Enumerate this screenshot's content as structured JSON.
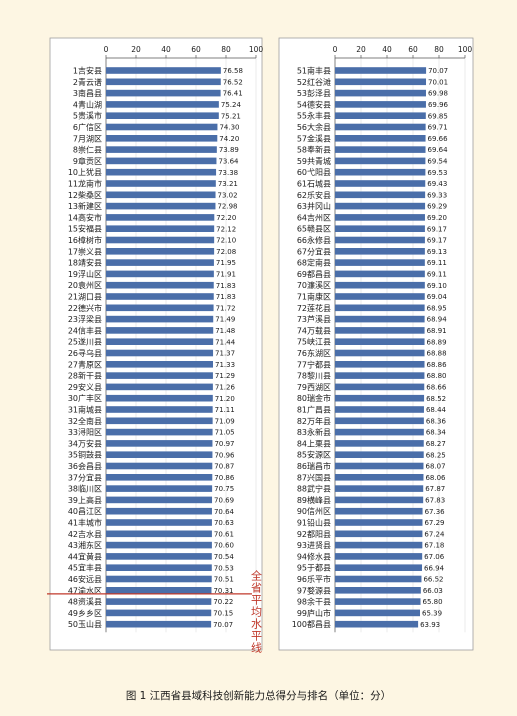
{
  "caption": "图 1 江西省县域科技创新能力总得分与排名（单位：分）",
  "annotation": "全省平均水平线",
  "colors": {
    "bar": "#4a6ea9",
    "average_line": "#c0392b",
    "panel": "#ffffff",
    "grid": "#e3e3e3"
  },
  "chart_data": [
    {
      "type": "bar",
      "orientation": "horizontal",
      "xlim": [
        0,
        100
      ],
      "xticks": [
        0,
        20,
        40,
        60,
        80,
        100
      ],
      "grid": true,
      "title": "",
      "xlabel": "",
      "ylabel": "",
      "categories": [
        "1吉安县",
        "2青云谱",
        "3南昌县",
        "4青山湖",
        "5贵溪市",
        "6广信区",
        "7月湖区",
        "8崇仁县",
        "9章贡区",
        "10上犹县",
        "11龙南市",
        "12柴桑区",
        "13新建区",
        "14高安市",
        "15安福县",
        "16樟树市",
        "17崇义县",
        "18靖安县",
        "19浮山区",
        "20袁州区",
        "21湖口县",
        "22德兴市",
        "23浮梁县",
        "24信丰县",
        "25遂川县",
        "26寻乌县",
        "27青原区",
        "28新干县",
        "29安义县",
        "30广丰区",
        "31南城县",
        "32全南县",
        "33浔阳区",
        "34万安县",
        "35铜鼓县",
        "36会昌县",
        "37分宜县",
        "38临川区",
        "39上高县",
        "40昌江区",
        "41丰城市",
        "42吉水县",
        "43湘东区",
        "44宜黄县",
        "45宜丰县",
        "46安远县",
        "47渝水区",
        "48资溪县",
        "49乡乡区",
        "50玉山县"
      ],
      "values": [
        76.58,
        76.52,
        76.41,
        75.24,
        75.21,
        74.3,
        74.2,
        73.89,
        73.64,
        73.38,
        73.21,
        73.02,
        72.98,
        72.2,
        72.12,
        72.1,
        72.08,
        71.95,
        71.91,
        71.83,
        71.83,
        71.72,
        71.49,
        71.48,
        71.44,
        71.37,
        71.33,
        71.29,
        71.26,
        71.2,
        71.11,
        71.09,
        71.05,
        70.97,
        70.96,
        70.87,
        70.86,
        70.75,
        70.69,
        70.64,
        70.63,
        70.61,
        70.6,
        70.54,
        70.53,
        70.51,
        70.31,
        70.22,
        70.15,
        70.07
      ],
      "value_labels": [
        "76.58",
        "76.52",
        "76.41",
        "75.24",
        "75.21",
        "74.30",
        "74.20",
        "73.89",
        "73.64",
        "73.38",
        "73.21",
        "73.02",
        "72.98",
        "72.20",
        "72.12",
        "72.10",
        "72.08",
        "71.95",
        "71.91",
        "71.83",
        "71.83",
        "71.72",
        "71.49",
        "71.48",
        "71.44",
        "71.37",
        "71.33",
        "71.29",
        "71.26",
        "71.20",
        "71.11",
        "71.09",
        "71.05",
        "70.97",
        "70.96",
        "70.87",
        "70.86",
        "70.75",
        "70.69",
        "70.64",
        "70.63",
        "70.61",
        "70.60",
        "70.54",
        "70.53",
        "70.51",
        "70.31",
        "70.22",
        "70.15",
        "70.07"
      ]
    },
    {
      "type": "bar",
      "orientation": "horizontal",
      "xlim": [
        0,
        100
      ],
      "xticks": [
        0,
        20,
        40,
        60,
        80,
        100
      ],
      "grid": true,
      "title": "",
      "xlabel": "",
      "ylabel": "",
      "categories": [
        "51南丰县",
        "52红谷滩",
        "53彭泽县",
        "54德安县",
        "55永丰县",
        "56大余县",
        "57金溪县",
        "58奉新县",
        "59共青城",
        "60弋阳县",
        "61石城县",
        "62乐安县",
        "63井冈山",
        "64吉州区",
        "65赣县区",
        "66永修县",
        "67分宜县",
        "68定南县",
        "69都昌县",
        "70濂溪区",
        "71南康区",
        "72莲花县",
        "73芦溪县",
        "74万载县",
        "75峡江县",
        "76东湖区",
        "77宁都县",
        "78黎川县",
        "79西湖区",
        "80瑞金市",
        "81广昌县",
        "82万年县",
        "83永新县",
        "84上栗县",
        "85安源区",
        "86瑞昌市",
        "87兴国县",
        "88武宁县",
        "89横峰县",
        "90信州区",
        "91铅山县",
        "92都阳县",
        "93进贤县",
        "94修水县",
        "95于都县",
        "96乐平市",
        "97婺源县",
        "98余干县",
        "99庐山市",
        "100都昌县"
      ],
      "values": [
        70.07,
        70.01,
        69.98,
        69.96,
        69.85,
        69.71,
        69.66,
        69.64,
        69.54,
        69.53,
        69.43,
        69.33,
        69.29,
        69.2,
        69.17,
        69.17,
        69.13,
        69.11,
        69.11,
        69.1,
        69.04,
        68.95,
        68.94,
        68.91,
        68.89,
        68.88,
        68.86,
        68.8,
        68.66,
        68.52,
        68.44,
        68.36,
        68.34,
        68.27,
        68.25,
        68.07,
        68.06,
        67.87,
        67.83,
        67.36,
        67.29,
        67.24,
        67.18,
        67.06,
        66.94,
        66.52,
        66.03,
        65.8,
        65.39,
        63.93
      ],
      "value_labels": [
        "70.07",
        "70.01",
        "69.98",
        "69.96",
        "69.85",
        "69.71",
        "69.66",
        "69.64",
        "69.54",
        "69.53",
        "69.43",
        "69.33",
        "69.29",
        "69.20",
        "69.17",
        "69.17",
        "69.13",
        "69.11",
        "69.11",
        "69.10",
        "69.04",
        "68.95",
        "68.94",
        "68.91",
        "68.89",
        "68.88",
        "68.86",
        "68.80",
        "68.66",
        "68.52",
        "68.44",
        "68.36",
        "68.34",
        "68.27",
        "68.25",
        "68.07",
        "68.06",
        "67.87",
        "67.83",
        "67.36",
        "67.29",
        "67.24",
        "67.18",
        "67.06",
        "66.94",
        "66.52",
        "66.03",
        "65.80",
        "65.39",
        "63.93"
      ]
    }
  ]
}
